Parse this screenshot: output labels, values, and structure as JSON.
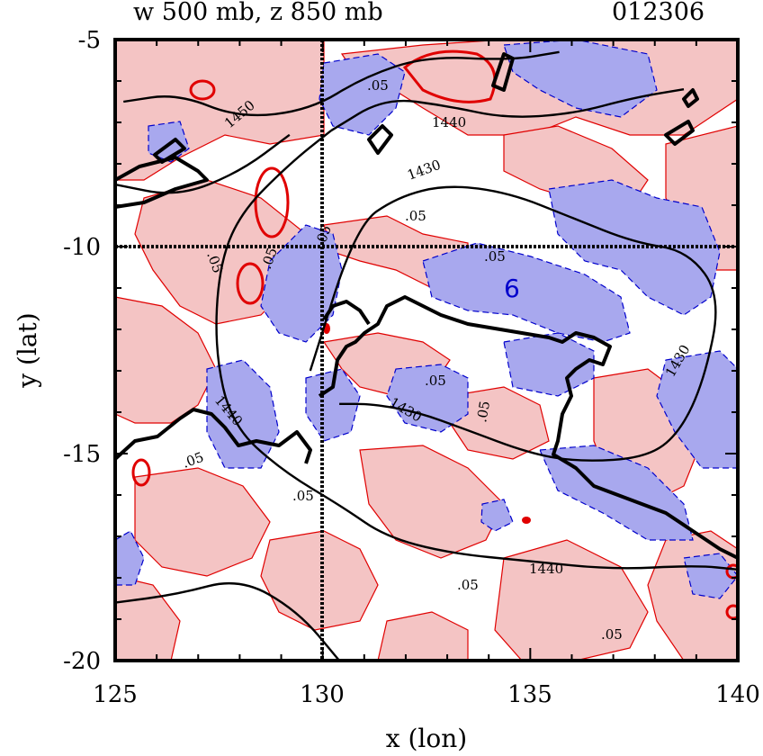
{
  "chart_data": {
    "type": "contour",
    "title_left": "w 500 mb, z 850 mb",
    "title_right": "012306",
    "xlabel": "x (lon)",
    "ylabel": "y (lat)",
    "xlim": [
      125,
      140
    ],
    "ylim": [
      -20,
      -5
    ],
    "xticks": [
      "125",
      "130",
      "135",
      "140"
    ],
    "yticks": [
      "-5",
      "-10",
      "-15",
      "-20"
    ],
    "reference_lines": {
      "x": 130,
      "y": -10
    },
    "colors": {
      "positive_fill": "#f4c4c4",
      "negative_fill": "#a8a8ee",
      "positive_line": "#e00000",
      "negative_line": "#0000cc",
      "height_line": "#000000"
    },
    "height_contours": [
      {
        "label": "1450",
        "points": [
          [
            125.2,
            -6.5
          ],
          [
            126.5,
            -6.3
          ],
          [
            128,
            -6.9
          ],
          [
            129.7,
            -6.7
          ],
          [
            131,
            -5.9
          ],
          [
            132.5,
            -5.4
          ],
          [
            134.5,
            -5.5
          ],
          [
            135.7,
            -5.3
          ]
        ]
      },
      {
        "label": "1440",
        "points": [
          [
            130.2,
            -7.2
          ],
          [
            131.5,
            -6.4
          ],
          [
            133,
            -6.6
          ],
          [
            134.4,
            -6.9
          ],
          [
            136,
            -6.8
          ],
          [
            137.5,
            -6.4
          ],
          [
            138.7,
            -6.2
          ]
        ]
      },
      {
        "label": "1440",
        "points": [
          [
            130.2,
            -7.2
          ],
          [
            129.2,
            -8
          ],
          [
            128,
            -9.2
          ],
          [
            127.5,
            -10.5
          ],
          [
            127.4,
            -12.5
          ],
          [
            127.8,
            -14.3
          ],
          [
            129,
            -15.4
          ],
          [
            130.5,
            -16.3
          ],
          [
            131.5,
            -17
          ],
          [
            133,
            -17.4
          ],
          [
            135,
            -17.6
          ],
          [
            137,
            -17.8
          ],
          [
            139,
            -17.7
          ],
          [
            140,
            -17.8
          ]
        ]
      },
      {
        "label": "1430",
        "points": [
          [
            129.7,
            -13
          ],
          [
            130.8,
            -9.5
          ],
          [
            131.8,
            -8.8
          ],
          [
            133,
            -8.5
          ],
          [
            134.5,
            -8.7
          ],
          [
            136,
            -9.3
          ],
          [
            137.5,
            -9.9
          ],
          [
            138.8,
            -10.1
          ],
          [
            139.6,
            -11.2
          ],
          [
            139.2,
            -13.2
          ],
          [
            138.6,
            -14.5
          ],
          [
            137.8,
            -15.1
          ],
          [
            136.2,
            -15.2
          ],
          [
            135,
            -15
          ],
          [
            133.4,
            -14.4
          ],
          [
            132.3,
            -14
          ],
          [
            131.2,
            -13.8
          ],
          [
            130.4,
            -13.8
          ]
        ]
      },
      {
        "label": "1450",
        "points": [
          [
            125,
            -8.5
          ],
          [
            126.5,
            -8.8
          ],
          [
            128,
            -8.2
          ],
          [
            129.2,
            -7.3
          ]
        ]
      },
      {
        "label": "",
        "points": [
          [
            125,
            -18.6
          ],
          [
            126.5,
            -18.4
          ],
          [
            128,
            -18
          ],
          [
            129.4,
            -18.8
          ],
          [
            130.4,
            -20
          ]
        ]
      }
    ],
    "contour_labels": [
      "1450",
      "1440",
      "1430",
      "1440",
      "1430",
      "1430",
      "1440",
      ".05",
      ".05",
      ".05",
      ".05",
      ".05",
      ".05",
      ".05",
      ".05",
      ".05",
      ".05",
      ".05",
      ".05",
      ".05"
    ],
    "coastline_label": "",
    "peak_marker": "6"
  }
}
